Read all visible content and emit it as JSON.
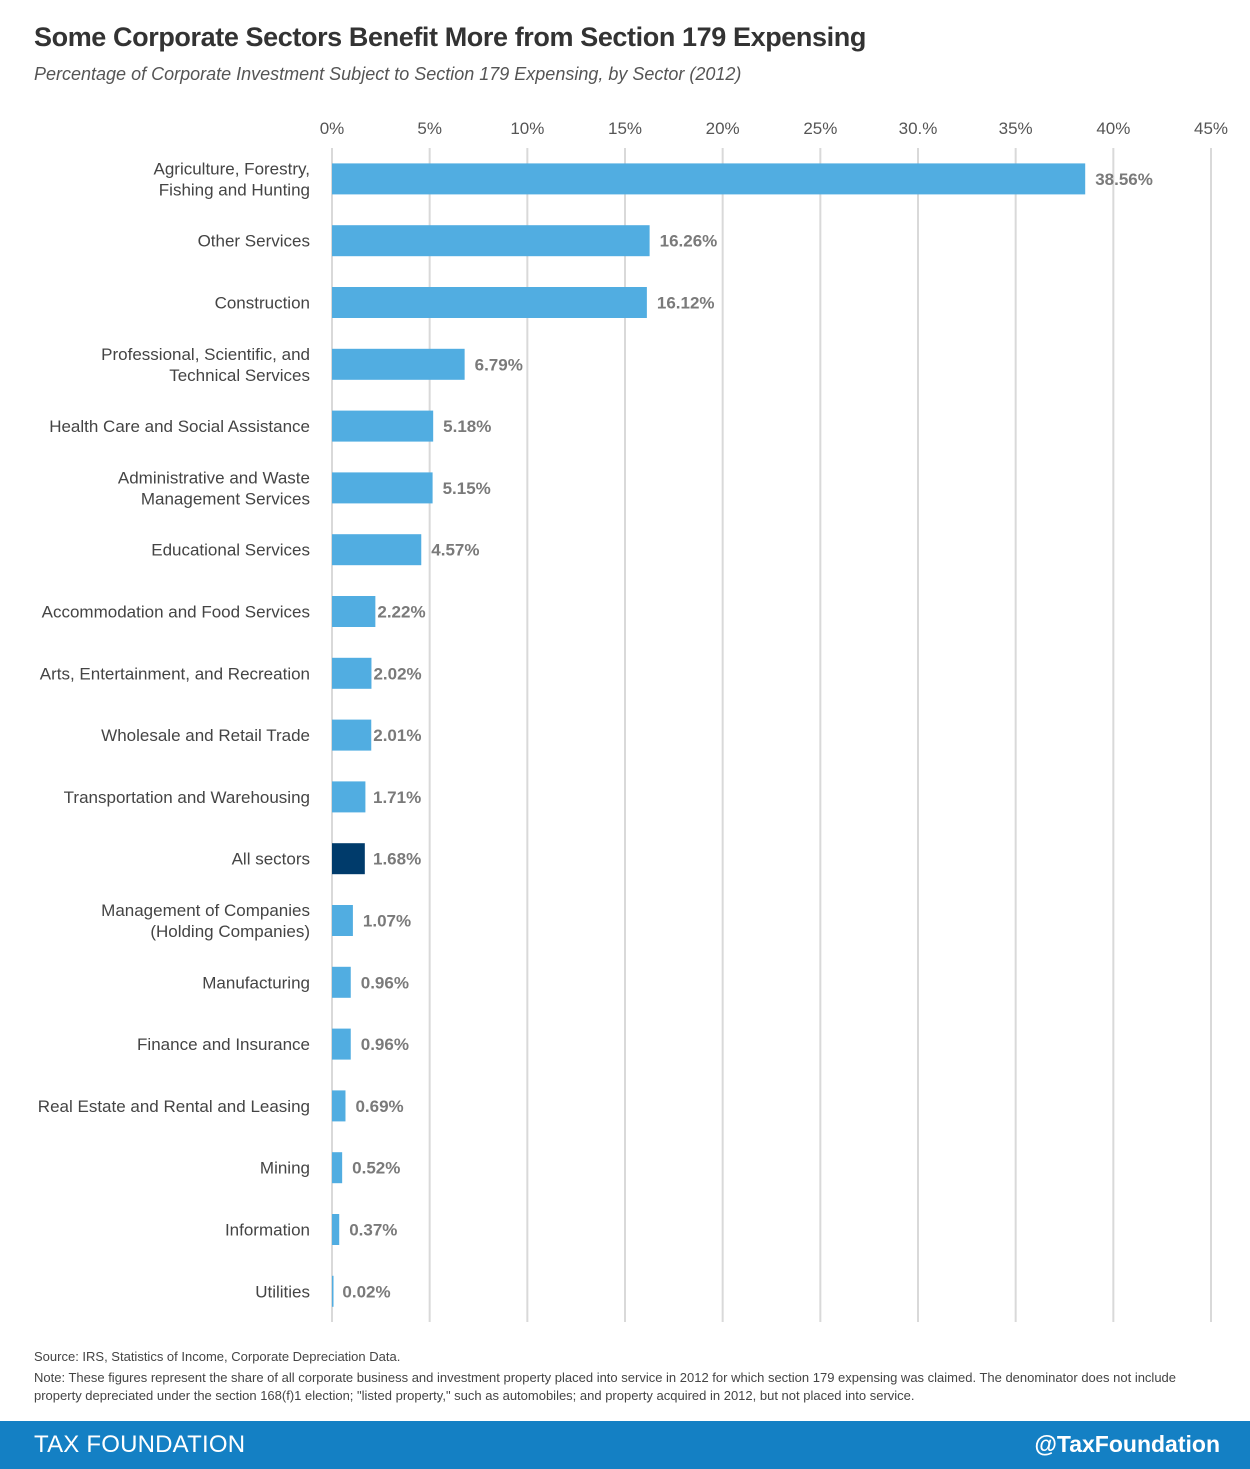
{
  "chart_data": {
    "type": "bar",
    "orientation": "horizontal",
    "title": "Some Corporate Sectors Benefit More from Section 179 Expensing",
    "subtitle": "Percentage of Corporate Investment Subject to Section 179 Expensing, by Sector (2012)",
    "xlabel": "",
    "ylabel": "",
    "xlim": [
      0,
      45
    ],
    "x_ticks": [
      0,
      5,
      10,
      15,
      20,
      25,
      30,
      35,
      40,
      45
    ],
    "x_tick_labels": [
      "0%",
      "5%",
      "10%",
      "15%",
      "20%",
      "25%",
      "30.%",
      "35%",
      "40%",
      "45%"
    ],
    "x_axis_position": "top",
    "grid": true,
    "legend": "none",
    "bar_color": "#51ade1",
    "highlight_color": "#003b6b",
    "categories": [
      [
        "Agriculture, Forestry,",
        "Fishing and Hunting"
      ],
      [
        "Other Services"
      ],
      [
        "Construction"
      ],
      [
        "Professional, Scientific, and",
        "Technical Services"
      ],
      [
        "Health Care and Social Assistance"
      ],
      [
        "Administrative and Waste",
        "Management Services"
      ],
      [
        "Educational Services"
      ],
      [
        "Accommodation and Food Services"
      ],
      [
        "Arts, Entertainment, and Recreation"
      ],
      [
        "Wholesale and Retail Trade"
      ],
      [
        "Transportation and Warehousing"
      ],
      [
        "All sectors"
      ],
      [
        "Management of Companies",
        "(Holding Companies)"
      ],
      [
        "Manufacturing"
      ],
      [
        "Finance and Insurance"
      ],
      [
        "Real Estate and Rental and Leasing"
      ],
      [
        "Mining"
      ],
      [
        "Information"
      ],
      [
        "Utilities"
      ]
    ],
    "values": [
      38.56,
      16.26,
      16.12,
      6.79,
      5.18,
      5.15,
      4.57,
      2.22,
      2.02,
      2.01,
      1.71,
      1.68,
      1.07,
      0.96,
      0.96,
      0.69,
      0.52,
      0.37,
      0.02
    ],
    "value_labels": [
      "38.56%",
      "16.26%",
      "16.12%",
      "6.79%",
      "5.18%",
      "5.15%",
      "4.57%",
      "2.22%",
      "2.02%",
      "2.01%",
      "1.71%",
      "1.68%",
      "1.07%",
      "0.96%",
      "0.96%",
      "0.69%",
      "0.52%",
      "0.37%",
      "0.02%"
    ],
    "highlighted": [
      "All sectors"
    ]
  },
  "footnotes": {
    "source": "Source: IRS, Statistics of Income, Corporate Depreciation Data.",
    "note": "Note: These figures represent the share of all corporate business and investment property placed into service in 2012 for which section 179 expensing was claimed. The denominator does not include property depreciated under the section 168(f)1 election; \"listed property,\" such as automobiles; and property acquired in 2012, but not placed into service."
  },
  "footer": {
    "brand": "TAX FOUNDATION",
    "handle": "@TaxFoundation",
    "background": "#1480c4"
  }
}
